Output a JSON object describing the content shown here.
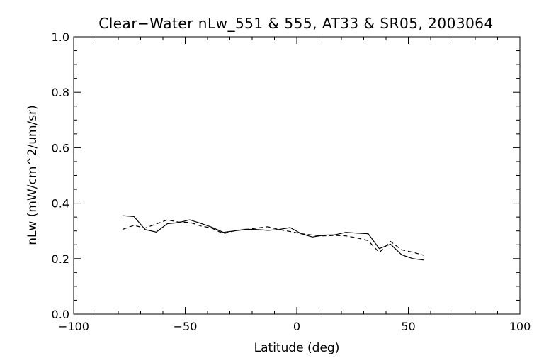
{
  "chart_data": {
    "type": "line",
    "title": "Clear−Water nLw_551 & 555, AT33 & SR05, 2003064",
    "xlabel": "Latitude (deg)",
    "ylabel": "nLw (mW/cm^2/um/sr)",
    "xlim": [
      -100,
      100
    ],
    "ylim": [
      0.0,
      1.0
    ],
    "grid": false,
    "x_ticks": [
      -100,
      -50,
      0,
      50,
      100
    ],
    "x_tick_labels": [
      "−100",
      "−50",
      "0",
      "50",
      "100"
    ],
    "y_ticks": [
      0.0,
      0.2,
      0.4,
      0.6,
      0.8,
      1.0
    ],
    "y_tick_labels": [
      "0.0",
      "0.2",
      "0.4",
      "0.6",
      "0.8",
      "1.0"
    ],
    "series": [
      {
        "style": "solid",
        "x": [
          -78,
          -73,
          -68,
          -63,
          -58,
          -53,
          -48,
          -43,
          -38,
          -33,
          -28,
          -23,
          -18,
          -13,
          -8,
          -3,
          2,
          7,
          12,
          17,
          22,
          27,
          32,
          37,
          42,
          47,
          52,
          57
        ],
        "y": [
          0.355,
          0.352,
          0.305,
          0.296,
          0.326,
          0.33,
          0.34,
          0.327,
          0.313,
          0.295,
          0.3,
          0.306,
          0.305,
          0.302,
          0.305,
          0.312,
          0.29,
          0.278,
          0.285,
          0.286,
          0.295,
          0.292,
          0.29,
          0.236,
          0.252,
          0.214,
          0.2,
          0.195
        ]
      },
      {
        "style": "dashed",
        "x": [
          -78,
          -73,
          -68,
          -63,
          -58,
          -53,
          -48,
          -43,
          -38,
          -33,
          -28,
          -23,
          -18,
          -13,
          -8,
          -3,
          2,
          7,
          12,
          17,
          22,
          27,
          32,
          37,
          42,
          47,
          52,
          57
        ],
        "y": [
          0.306,
          0.32,
          0.31,
          0.325,
          0.34,
          0.332,
          0.331,
          0.318,
          0.31,
          0.29,
          0.3,
          0.305,
          0.31,
          0.315,
          0.305,
          0.298,
          0.29,
          0.285,
          0.282,
          0.284,
          0.282,
          0.275,
          0.265,
          0.222,
          0.262,
          0.232,
          0.223,
          0.212
        ]
      }
    ]
  }
}
